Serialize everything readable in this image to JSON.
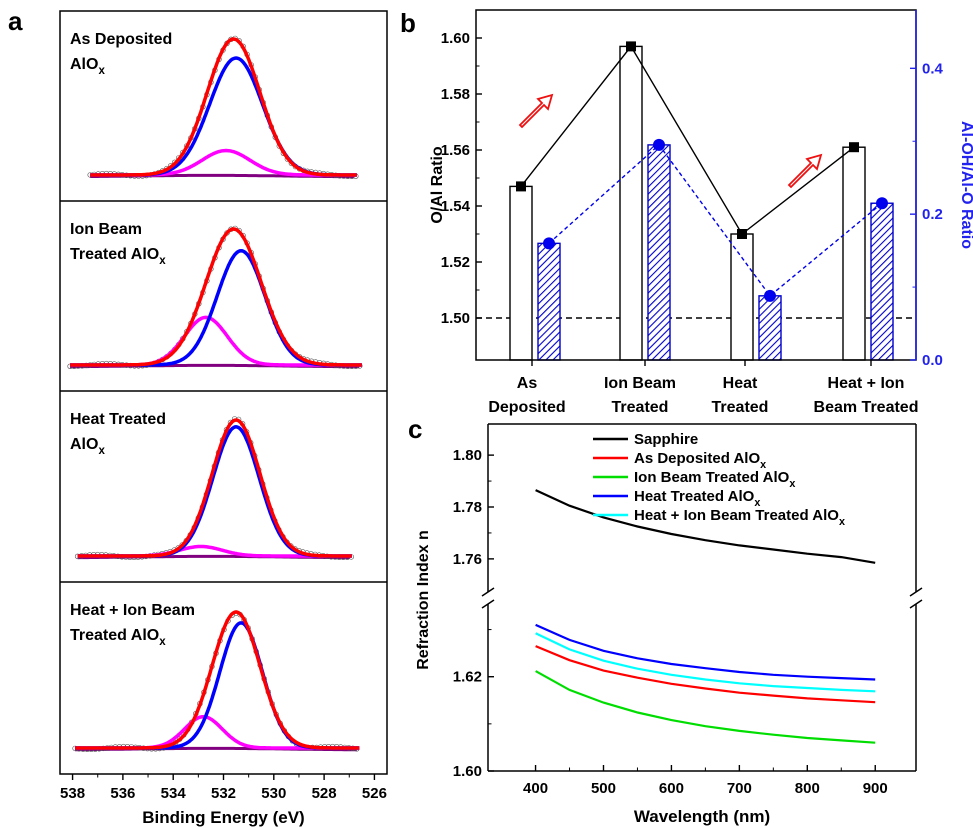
{
  "panel_letters": {
    "a": "a",
    "b": "b",
    "c": "c"
  },
  "chart_data": [
    {
      "panel": "a",
      "type": "line",
      "xlabel": "Binding Energy (eV)",
      "xlim": [
        538.5,
        525.5
      ],
      "x_ticks": [
        538,
        536,
        534,
        532,
        530,
        528,
        526
      ],
      "subplots": [
        {
          "label_lines": [
            "As Deposited",
            "AlO"
          ],
          "subscript": "x",
          "total": {
            "center": 531.6,
            "amp": 1.0,
            "sigma": 1.05
          },
          "main": {
            "center": 531.5,
            "amp": 0.86,
            "sigma": 1.05
          },
          "minor": {
            "center": 531.9,
            "amp": 0.18,
            "sigma": 0.95
          },
          "data_range": [
            537.3,
            526.7
          ]
        },
        {
          "label_lines": [
            "Ion Beam",
            "Treated AlO"
          ],
          "subscript": "x",
          "total": {
            "center": 531.6,
            "amp": 1.0,
            "sigma": 1.1
          },
          "main": {
            "center": 531.3,
            "amp": 0.84,
            "sigma": 0.95
          },
          "minor": {
            "center": 532.7,
            "amp": 0.35,
            "sigma": 0.85
          },
          "data_range": [
            538.1,
            526.5
          ]
        },
        {
          "label_lines": [
            "Heat Treated",
            "AlO"
          ],
          "subscript": "x",
          "total": {
            "center": 531.5,
            "amp": 1.0,
            "sigma": 0.95
          },
          "main": {
            "center": 531.5,
            "amp": 0.95,
            "sigma": 0.92
          },
          "minor": {
            "center": 532.9,
            "amp": 0.07,
            "sigma": 0.85
          },
          "data_range": [
            537.8,
            526.9
          ]
        },
        {
          "label_lines": [
            "Heat + Ion Beam",
            "Treated AlO"
          ],
          "subscript": "x",
          "total": {
            "center": 531.5,
            "amp": 1.0,
            "sigma": 0.95
          },
          "main": {
            "center": 531.3,
            "amp": 0.92,
            "sigma": 0.85
          },
          "minor": {
            "center": 532.8,
            "amp": 0.23,
            "sigma": 0.75
          },
          "data_range": [
            537.9,
            526.6
          ]
        }
      ]
    },
    {
      "panel": "b",
      "type": "bar",
      "categories": [
        [
          "As",
          "Deposited"
        ],
        [
          "Ion Beam",
          "Treated"
        ],
        [
          "Heat",
          "Treated"
        ],
        [
          "Heat + Ion",
          "Beam Treated"
        ]
      ],
      "ylabel_left": "O/Al Ratio",
      "ylabel_right": "Al-OH/Al-O Ratio",
      "ylim_left": [
        1.485,
        1.61
      ],
      "ylim_right": [
        0.0,
        0.48
      ],
      "y_ticks_left": [
        "1.50",
        "1.52",
        "1.54",
        "1.56",
        "1.58",
        "1.60"
      ],
      "y_ticks_right": [
        "0.0",
        "0.2",
        "0.4"
      ],
      "reference_line": 1.5,
      "series": [
        {
          "axis": "left",
          "values": [
            1.547,
            1.597,
            1.53,
            1.561
          ]
        },
        {
          "axis": "right",
          "values": [
            0.16,
            0.295,
            0.088,
            0.215
          ]
        }
      ],
      "colors": {
        "left": "#000000",
        "right": "#0000ee",
        "arrows": "#ee1111"
      }
    },
    {
      "panel": "c",
      "type": "line",
      "xlabel": "Wavelength (nm)",
      "ylabel": "Refraction Index n",
      "xlim": [
        330,
        960
      ],
      "x_ticks": [
        "400",
        "500",
        "600",
        "700",
        "800",
        "900"
      ],
      "y_ticks_upper": [
        "1.76",
        "1.78",
        "1.80"
      ],
      "y_ticks_lower": [
        "1.60",
        "1.62"
      ],
      "y_break": {
        "lower": [
          1.6,
          1.635
        ],
        "upper": [
          1.748,
          1.812
        ]
      },
      "x": [
        400,
        450,
        500,
        550,
        600,
        650,
        700,
        750,
        800,
        850,
        900
      ],
      "series": [
        {
          "name": "Sapphire",
          "color": "#000000",
          "values": [
            1.7865,
            1.7805,
            1.776,
            1.7725,
            1.7696,
            1.7672,
            1.7652,
            1.7636,
            1.762,
            1.7607,
            1.7585
          ]
        },
        {
          "name": "As Deposited AlO",
          "subscript": "x",
          "color": "#ff0000",
          "values": [
            1.6265,
            1.6235,
            1.6213,
            1.6198,
            1.6185,
            1.6175,
            1.6166,
            1.616,
            1.6154,
            1.615,
            1.6146
          ]
        },
        {
          "name": "Ion Beam Treated AlO",
          "subscript": "x",
          "color": "#00dd00",
          "values": [
            1.6212,
            1.6172,
            1.6145,
            1.6124,
            1.6108,
            1.6095,
            1.6085,
            1.6077,
            1.607,
            1.6065,
            1.606
          ]
        },
        {
          "name": "Heat Treated AlO",
          "subscript": "x",
          "color": "#0000ff",
          "values": [
            1.631,
            1.6278,
            1.6255,
            1.6239,
            1.6227,
            1.6218,
            1.621,
            1.6204,
            1.62,
            1.6197,
            1.6194
          ]
        },
        {
          "name": "Heat + Ion Beam Treated AlO",
          "subscript": "x",
          "color": "#00ffff",
          "values": [
            1.6292,
            1.6258,
            1.6234,
            1.6217,
            1.6204,
            1.6194,
            1.6186,
            1.618,
            1.6176,
            1.6172,
            1.6169
          ]
        }
      ]
    }
  ]
}
